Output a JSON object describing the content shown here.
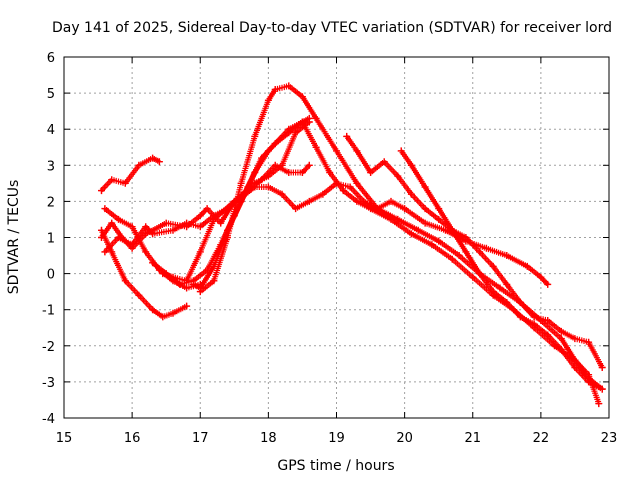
{
  "chart_data": {
    "type": "scatter",
    "title": "Day 141 of 2025, Sidereal Day-to-day VTEC variation (SDTVAR) for receiver lord",
    "xlabel": "GPS time / hours",
    "ylabel": "SDTVAR / TECUs",
    "xlim": [
      15,
      23
    ],
    "ylim": [
      -4,
      6
    ],
    "xticks": [
      "15",
      "16",
      "17",
      "18",
      "19",
      "20",
      "21",
      "22",
      "23"
    ],
    "yticks": [
      "-4",
      "-3",
      "-2",
      "-1",
      "0",
      "1",
      "2",
      "3",
      "4",
      "5",
      "6"
    ],
    "grid": true,
    "marker": "+",
    "color": "#ff0000",
    "series": [
      {
        "name": "track-1",
        "x": [
          15.55,
          15.7,
          15.9,
          16.1,
          16.3,
          16.4
        ],
        "y": [
          2.3,
          2.6,
          2.5,
          3.0,
          3.2,
          3.1
        ]
      },
      {
        "name": "track-2",
        "x": [
          15.55,
          15.7,
          15.9,
          16.1,
          16.3,
          16.45,
          16.6,
          16.8
        ],
        "y": [
          1.2,
          0.6,
          -0.2,
          -0.6,
          -1.0,
          -1.2,
          -1.1,
          -0.9
        ]
      },
      {
        "name": "track-3",
        "x": [
          15.6,
          15.8,
          16.0,
          16.2,
          16.4,
          16.6,
          16.8,
          17.0
        ],
        "y": [
          1.8,
          1.5,
          1.3,
          0.6,
          0.1,
          -0.2,
          -0.4,
          -0.3
        ]
      },
      {
        "name": "track-4",
        "x": [
          15.55,
          15.7,
          15.85,
          16.0,
          16.2,
          16.5,
          16.8,
          17.0,
          17.1,
          17.3,
          17.5,
          17.7,
          17.9,
          18.1,
          18.3,
          18.5,
          18.6
        ],
        "y": [
          1.0,
          1.4,
          1.0,
          0.7,
          1.1,
          1.4,
          1.3,
          1.6,
          1.8,
          1.4,
          2.0,
          2.3,
          2.6,
          3.0,
          2.8,
          2.8,
          3.0
        ]
      },
      {
        "name": "track-5",
        "x": [
          15.6,
          15.8,
          16.0,
          16.2,
          16.3,
          16.6,
          16.8,
          17.0,
          17.2,
          17.4,
          17.6,
          17.8,
          18.0,
          18.2,
          18.4,
          18.6,
          18.8,
          19.0,
          19.2,
          19.4,
          19.6,
          19.8,
          20.0,
          20.3,
          20.6,
          20.9,
          21.2,
          21.5,
          21.8,
          22.0,
          22.1
        ],
        "y": [
          0.6,
          1.0,
          0.8,
          1.3,
          1.1,
          1.2,
          1.4,
          1.3,
          1.6,
          1.8,
          2.1,
          2.4,
          2.4,
          2.2,
          1.8,
          2.0,
          2.2,
          2.5,
          2.4,
          2.0,
          1.8,
          2.0,
          1.8,
          1.4,
          1.2,
          0.9,
          0.7,
          0.5,
          0.2,
          -0.1,
          -0.3
        ]
      },
      {
        "name": "track-6",
        "x": [
          16.9,
          17.0,
          17.2,
          17.4,
          17.6,
          17.8,
          18.0,
          18.1,
          18.3,
          18.5,
          18.7,
          18.9,
          19.1,
          19.3,
          19.5,
          19.8,
          20.1,
          20.4,
          20.7,
          21.0,
          21.3,
          21.6,
          21.9,
          22.2,
          22.5,
          22.7,
          22.85
        ],
        "y": [
          -0.3,
          -0.4,
          0.2,
          1.2,
          2.0,
          2.8,
          3.4,
          3.6,
          4.0,
          4.2,
          3.5,
          2.8,
          2.3,
          2.0,
          1.8,
          1.5,
          1.1,
          0.8,
          0.4,
          -0.1,
          -0.6,
          -1.0,
          -1.5,
          -2.0,
          -2.4,
          -2.8,
          -3.6
        ]
      },
      {
        "name": "track-7",
        "x": [
          17.0,
          17.2,
          17.4,
          17.6,
          17.8,
          18.0,
          18.1,
          18.3,
          18.5,
          18.7,
          19.0,
          19.3,
          19.6,
          19.9,
          20.2,
          20.5,
          20.8,
          21.1,
          21.4,
          21.7,
          22.0,
          22.3,
          22.5,
          22.7,
          22.9
        ],
        "y": [
          -0.5,
          -0.2,
          1.0,
          2.5,
          3.8,
          4.8,
          5.1,
          5.2,
          4.9,
          4.3,
          3.4,
          2.5,
          1.8,
          1.5,
          1.2,
          0.9,
          0.5,
          0.0,
          -0.4,
          -0.8,
          -1.3,
          -1.8,
          -2.4,
          -2.9,
          -3.2
        ]
      },
      {
        "name": "track-8",
        "x": [
          16.3,
          16.5,
          16.7,
          16.9,
          17.1,
          17.3,
          17.5,
          17.7,
          17.9,
          18.1,
          18.3,
          18.5,
          18.6
        ],
        "y": [
          0.3,
          0.0,
          -0.3,
          -0.2,
          0.1,
          0.8,
          1.6,
          2.4,
          3.2,
          3.6,
          3.9,
          4.2,
          4.3
        ]
      },
      {
        "name": "track-9",
        "x": [
          16.45,
          16.6,
          16.8,
          17.0,
          17.2,
          17.5,
          17.8,
          18.0,
          18.2,
          18.4,
          18.6
        ],
        "y": [
          0.0,
          -0.1,
          -0.2,
          0.6,
          1.5,
          2.0,
          2.5,
          2.7,
          3.0,
          3.9,
          4.2
        ]
      },
      {
        "name": "track-10",
        "x": [
          19.15,
          19.3,
          19.5,
          19.7,
          19.9,
          20.1,
          20.3,
          20.5,
          20.7,
          20.9,
          21.1,
          21.3,
          21.5,
          21.7,
          21.9,
          22.1,
          22.3,
          22.5,
          22.7,
          22.9
        ],
        "y": [
          3.8,
          3.4,
          2.8,
          3.1,
          2.7,
          2.2,
          1.8,
          1.5,
          1.2,
          1.0,
          0.6,
          0.2,
          -0.3,
          -0.8,
          -1.2,
          -1.3,
          -1.6,
          -1.8,
          -1.9,
          -2.6
        ]
      },
      {
        "name": "track-11",
        "x": [
          19.95,
          20.1,
          20.3,
          20.5,
          20.7,
          20.9,
          21.1,
          21.3,
          21.5,
          21.7,
          21.9,
          22.1,
          22.3,
          22.5,
          22.7,
          22.9
        ],
        "y": [
          3.4,
          3.0,
          2.4,
          1.8,
          1.2,
          0.6,
          0.0,
          -0.5,
          -0.8,
          -1.2,
          -1.4,
          -1.7,
          -2.1,
          -2.6,
          -3.0,
          -3.2
        ]
      }
    ]
  }
}
